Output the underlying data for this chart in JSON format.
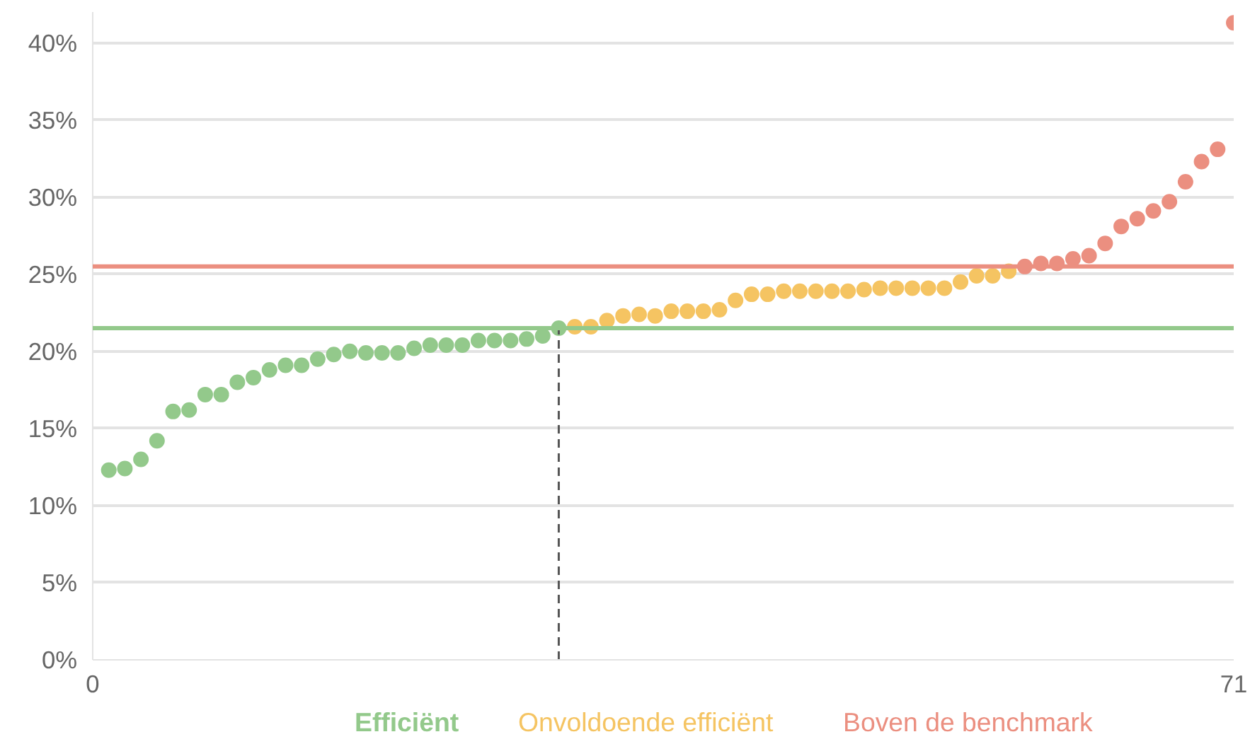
{
  "chart_data": {
    "type": "scatter",
    "marker": "circle",
    "grid": "y",
    "legend": "bottom",
    "xlim": [
      0,
      71
    ],
    "xticks": [
      0,
      71
    ],
    "ylim": [
      0,
      42
    ],
    "yticks": [
      {
        "value": 0,
        "label": "0%"
      },
      {
        "value": 5,
        "label": "5%"
      },
      {
        "value": 10,
        "label": "10%"
      },
      {
        "value": 15,
        "label": "15%"
      },
      {
        "value": 20,
        "label": "20%"
      },
      {
        "value": 25,
        "label": "25%"
      },
      {
        "value": 30,
        "label": "30%"
      },
      {
        "value": 35,
        "label": "35%"
      },
      {
        "value": 40,
        "label": "40%"
      }
    ],
    "series": [
      {
        "name": "Efficiënt",
        "color": "#93c98b",
        "x": [
          1,
          2,
          3,
          4,
          5,
          6,
          7,
          8,
          9,
          10,
          11,
          12,
          13,
          14,
          15,
          16,
          17,
          18,
          19,
          20,
          21,
          22,
          23,
          24,
          25,
          26,
          27,
          28,
          29
        ],
        "values": [
          12.3,
          12.4,
          13.0,
          14.2,
          16.1,
          16.2,
          17.2,
          17.2,
          18.0,
          18.3,
          18.8,
          19.1,
          19.1,
          19.5,
          19.8,
          20.0,
          19.9,
          19.9,
          19.9,
          20.2,
          20.4,
          20.4,
          20.4,
          20.7,
          20.7,
          20.7,
          20.8,
          21.0,
          21.5
        ]
      },
      {
        "name": "Onvoldoende efficiënt",
        "color": "#f5c462",
        "x": [
          30,
          31,
          32,
          33,
          34,
          35,
          36,
          37,
          38,
          39,
          40,
          41,
          42,
          43,
          44,
          45,
          46,
          47,
          48,
          49,
          50,
          51,
          52,
          53,
          54,
          55,
          56,
          57
        ],
        "values": [
          21.6,
          21.6,
          22.0,
          22.3,
          22.4,
          22.3,
          22.6,
          22.6,
          22.6,
          22.7,
          23.3,
          23.7,
          23.7,
          23.9,
          23.9,
          23.9,
          23.9,
          23.9,
          24.0,
          24.1,
          24.1,
          24.1,
          24.1,
          24.1,
          24.5,
          24.9,
          24.9,
          25.2
        ]
      },
      {
        "name": "Boven de benchmark",
        "color": "#eb8f80",
        "x": [
          58,
          59,
          60,
          61,
          62,
          63,
          64,
          65,
          66,
          67,
          68,
          69,
          70,
          71
        ],
        "values": [
          25.5,
          25.7,
          25.7,
          26.0,
          26.2,
          27.0,
          28.1,
          28.6,
          29.1,
          29.7,
          31.0,
          32.3,
          33.1,
          41.3
        ]
      }
    ],
    "ref_lines": [
      {
        "axis": "y",
        "value": 21.5,
        "color": "#93c98b",
        "line_style": "solid"
      },
      {
        "axis": "y",
        "value": 25.5,
        "color": "#eb8f80",
        "line_style": "solid"
      },
      {
        "axis": "x",
        "value": 29,
        "color": "#555555",
        "line_style": "dashed"
      }
    ]
  }
}
